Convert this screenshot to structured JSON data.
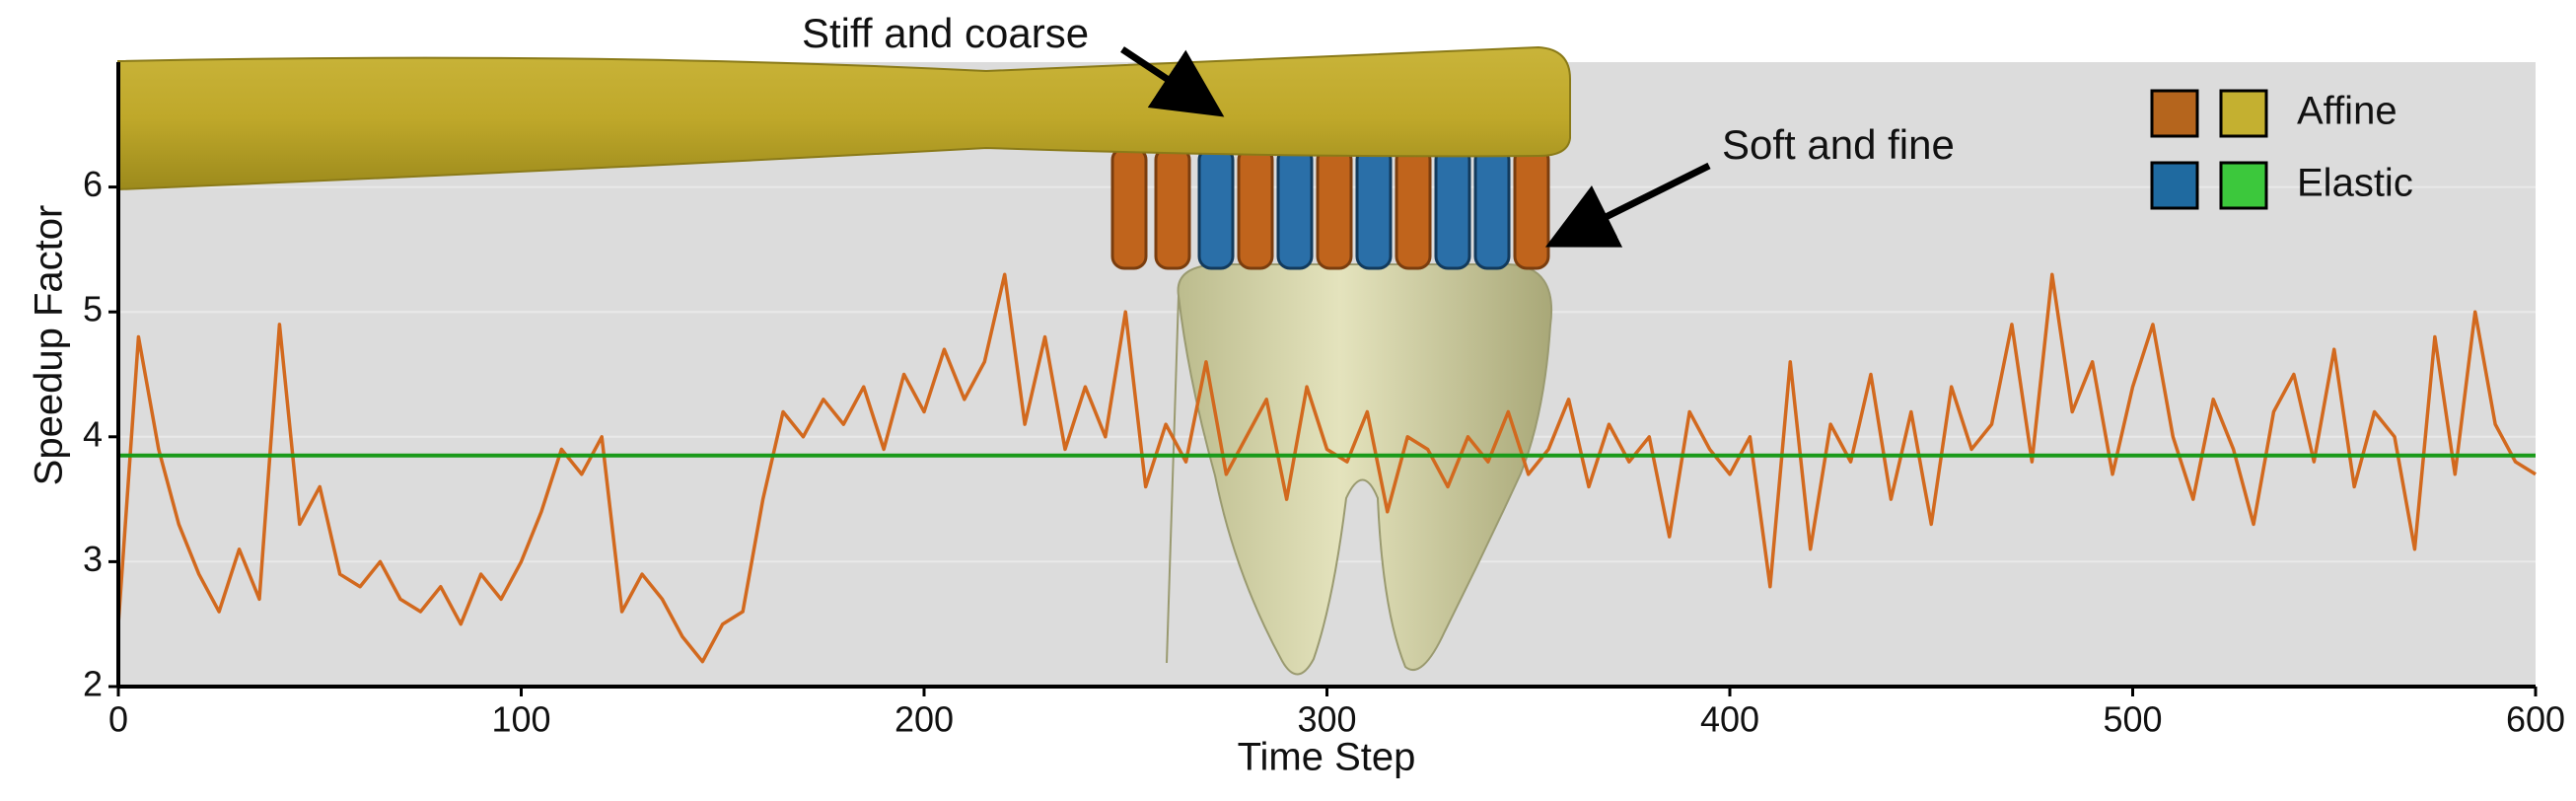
{
  "chart_data": {
    "type": "line",
    "x_label": "Time Step",
    "y_label": "Speedup Factor",
    "annotations": [
      "Stiff and coarse",
      "Soft and fine"
    ],
    "xlim": [
      0,
      600
    ],
    "xticks": [
      0,
      100,
      200,
      300,
      400,
      500,
      600
    ],
    "ylim": [
      2,
      7
    ],
    "yticks": [
      2,
      3,
      4,
      5,
      6
    ],
    "grid": true,
    "legend_position": "upper right",
    "series": [
      {
        "name": "Affine",
        "color": "#d2691e",
        "swatch_colors": [
          "#b5651d",
          "#c4b030"
        ],
        "x": [
          0,
          5,
          10,
          15,
          20,
          25,
          30,
          35,
          40,
          45,
          50,
          55,
          60,
          65,
          70,
          75,
          80,
          85,
          90,
          95,
          100,
          105,
          110,
          115,
          120,
          125,
          130,
          135,
          140,
          145,
          150,
          155,
          160,
          165,
          170,
          175,
          180,
          185,
          190,
          195,
          200,
          205,
          210,
          215,
          220,
          225,
          230,
          235,
          240,
          245,
          250,
          255,
          260,
          265,
          270,
          275,
          280,
          285,
          290,
          295,
          300,
          305,
          310,
          315,
          320,
          325,
          330,
          335,
          340,
          345,
          350,
          355,
          360,
          365,
          370,
          375,
          380,
          385,
          390,
          395,
          400,
          405,
          410,
          415,
          420,
          425,
          430,
          435,
          440,
          445,
          450,
          455,
          460,
          465,
          470,
          475,
          480,
          485,
          490,
          495,
          500,
          505,
          510,
          515,
          520,
          525,
          530,
          535,
          540,
          545,
          550,
          555,
          560,
          565,
          570,
          575,
          580,
          585,
          590,
          595,
          600
        ],
        "values": [
          2.5,
          4.8,
          3.9,
          3.3,
          2.9,
          2.6,
          3.1,
          2.7,
          4.9,
          3.3,
          3.6,
          2.9,
          2.8,
          3.0,
          2.7,
          2.6,
          2.8,
          2.5,
          2.9,
          2.7,
          3.0,
          3.4,
          3.9,
          3.7,
          4.0,
          2.6,
          2.9,
          2.7,
          2.4,
          2.2,
          2.5,
          2.6,
          3.5,
          4.2,
          4.0,
          4.3,
          4.1,
          4.4,
          3.9,
          4.5,
          4.2,
          4.7,
          4.3,
          4.6,
          5.3,
          4.1,
          4.8,
          3.9,
          4.4,
          4.0,
          5.0,
          3.6,
          4.1,
          3.8,
          4.6,
          3.7,
          4.0,
          4.3,
          3.5,
          4.4,
          3.9,
          3.8,
          4.2,
          3.4,
          4.0,
          3.9,
          3.6,
          4.0,
          3.8,
          4.2,
          3.7,
          3.9,
          4.3,
          3.6,
          4.1,
          3.8,
          4.0,
          3.2,
          4.2,
          3.9,
          3.7,
          4.0,
          2.8,
          4.6,
          3.1,
          4.1,
          3.8,
          4.5,
          3.5,
          4.2,
          3.3,
          4.4,
          3.9,
          4.1,
          4.9,
          3.8,
          5.3,
          4.2,
          4.6,
          3.7,
          4.4,
          4.9,
          4.0,
          3.5,
          4.3,
          3.9,
          3.3,
          4.2,
          4.5,
          3.8,
          4.7,
          3.6,
          4.2,
          4.0,
          3.1,
          4.8,
          3.7,
          5.0,
          4.1,
          3.8,
          3.7
        ]
      },
      {
        "name": "Elastic",
        "color": "#1a9a1a",
        "swatch_colors": [
          "#1f6aa0",
          "#3cc83c"
        ],
        "x": [
          0,
          600
        ],
        "values": [
          3.85,
          3.85
        ]
      }
    ]
  }
}
